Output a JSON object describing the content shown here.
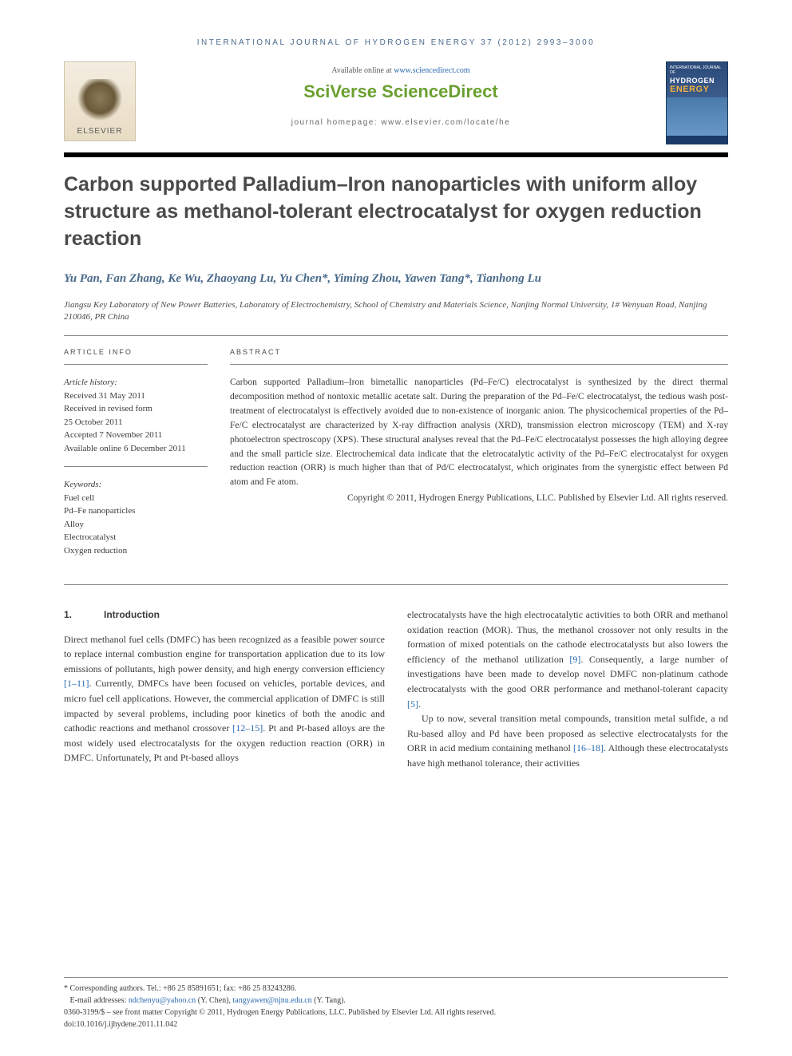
{
  "running_head": "INTERNATIONAL JOURNAL OF HYDROGEN ENERGY 37 (2012) 2993–3000",
  "elsevier_label": "ELSEVIER",
  "available_prefix": "Available online at ",
  "available_link": "www.sciencedirect.com",
  "sciverse": "SciVerse ",
  "sciencedirect": "ScienceDirect",
  "homepage": "journal homepage: www.elsevier.com/locate/he",
  "cover": {
    "small": "INTERNATIONAL JOURNAL OF",
    "title1": "HYDROGEN",
    "title2": "ENERGY"
  },
  "title": "Carbon supported Palladium–Iron nanoparticles with uniform alloy structure as methanol-tolerant electrocatalyst for oxygen reduction reaction",
  "authors": "Yu Pan, Fan Zhang, Ke Wu, Zhaoyang Lu, Yu Chen*, Yiming Zhou, Yawen Tang*, Tianhong Lu",
  "affiliation": "Jiangsu Key Laboratory of New Power Batteries, Laboratory of Electrochemistry, School of Chemistry and Materials Science, Nanjing Normal University, 1# Wenyuan Road, Nanjing 210046, PR China",
  "info_head": "ARTICLE INFO",
  "abs_head": "ABSTRACT",
  "history_label": "Article history:",
  "history": {
    "received": "Received 31 May 2011",
    "revised1": "Received in revised form",
    "revised2": "25 October 2011",
    "accepted": "Accepted 7 November 2011",
    "online": "Available online 6 December 2011"
  },
  "keywords_label": "Keywords:",
  "keywords": [
    "Fuel cell",
    "Pd–Fe nanoparticles",
    "Alloy",
    "Electrocatalyst",
    "Oxygen reduction"
  ],
  "abstract": "Carbon supported Palladium–Iron bimetallic nanoparticles (Pd–Fe/C) electrocatalyst is synthesized by the direct thermal decomposition method of nontoxic metallic acetate salt. During the preparation of the Pd–Fe/C electrocatalyst, the tedious wash post-treatment of electrocatalyst is effectively avoided due to non-existence of inorganic anion. The physicochemical properties of the Pd–Fe/C electrocatalyst are characterized by X-ray diffraction analysis (XRD), transmission electron microscopy (TEM) and X-ray photoelectron spectroscopy (XPS). These structural analyses reveal that the Pd–Fe/C electrocatalyst possesses the high alloying degree and the small particle size. Electrochemical data indicate that the eletrocatalytic activity of the Pd–Fe/C electrocatalyst for oxygen reduction reaction (ORR) is much higher than that of Pd/C electrocatalyst, which originates from the synergistic effect between Pd atom and Fe atom.",
  "copyright": "Copyright © 2011, Hydrogen Energy Publications, LLC. Published by Elsevier Ltd. All rights reserved.",
  "section_num": "1.",
  "section_title": "Introduction",
  "col1_p1a": "Direct methanol fuel cells (DMFC) has been recognized as a feasible power source to replace internal combustion engine for transportation application due to its low emissions of pollutants, high power density, and high energy conversion efficiency ",
  "col1_ref1": "[1–11]",
  "col1_p1b": ". Currently, DMFCs have been focused on vehicles, portable devices, and micro fuel cell applications. However, the commercial application of DMFC is still impacted by several problems, including poor kinetics of both the anodic and cathodic reactions and methanol crossover ",
  "col1_ref2": "[12–15]",
  "col1_p1c": ". Pt and Pt-based alloys are the most widely used electrocatalysts for the oxygen reduction reaction (ORR) in DMFC. Unfortunately, Pt and Pt-based alloys",
  "col2_p1a": "electrocatalysts have the high electrocatalytic activities to both ORR and methanol oxidation reaction (MOR). Thus, the methanol crossover not only results in the formation of mixed potentials on the cathode electrocatalysts but also lowers the efficiency of the methanol utilization ",
  "col2_ref1": "[9]",
  "col2_p1b": ". Consequently, a large number of investigations have been made to develop novel DMFC non-platinum cathode electrocatalysts with the good ORR performance and methanol-tolerant capacity ",
  "col2_ref2": "[5]",
  "col2_p1c": ".",
  "col2_p2a": "Up to now, several transition metal compounds, transition metal sulfide, a nd Ru-based alloy and Pd have been proposed as selective electrocatalysts for the ORR in acid medium containing methanol ",
  "col2_ref3": "[16–18]",
  "col2_p2b": ". Although these electrocatalysts have high methanol tolerance, their activities",
  "fn_corr": "* Corresponding authors. Tel.: +86 25 85891651; fax: +86 25 83243286.",
  "fn_email_label": "E-mail addresses: ",
  "fn_email1": "ndchenyu@yahoo.cn",
  "fn_name1": " (Y. Chen), ",
  "fn_email2": "tangyawen@njnu.edu.cn",
  "fn_name2": " (Y. Tang).",
  "fn_copy": "0360-3199/$ – see front matter Copyright © 2011, Hydrogen Energy Publications, LLC. Published by Elsevier Ltd. All rights reserved.",
  "fn_doi": "doi:10.1016/j.ijhydene.2011.11.042",
  "colors": {
    "link": "#2a6ab0",
    "author": "#4a6a8a",
    "sciverse": "#6aa030",
    "rule": "#000000"
  }
}
